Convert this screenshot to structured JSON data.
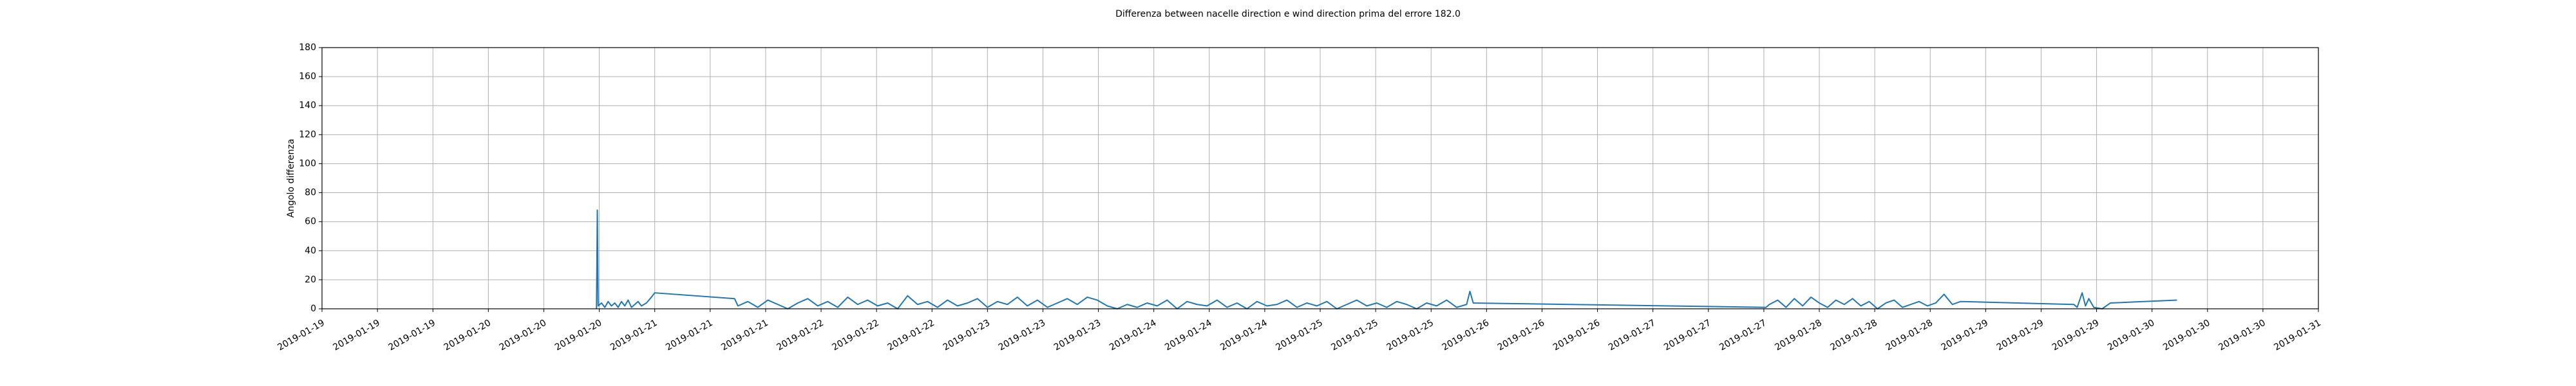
{
  "chart_data": {
    "type": "line",
    "title": "Differenza between nacelle direction e wind direction prima del errore 182.0",
    "ylabel": "Angolo differenza",
    "x": [
      20.65,
      20.655,
      20.66,
      20.68,
      20.7,
      20.72,
      20.74,
      20.76,
      20.78,
      20.8,
      20.82,
      20.84,
      20.86,
      20.88,
      20.9,
      20.92,
      20.95,
      20.98,
      21.0,
      21.48,
      21.5,
      21.56,
      21.62,
      21.68,
      21.74,
      21.8,
      21.86,
      21.92,
      21.98,
      22.04,
      22.1,
      22.16,
      22.22,
      22.28,
      22.34,
      22.4,
      22.46,
      22.52,
      22.58,
      22.64,
      22.7,
      22.76,
      22.82,
      22.88,
      22.94,
      23.0,
      23.06,
      23.12,
      23.18,
      23.24,
      23.3,
      23.36,
      23.42,
      23.48,
      23.54,
      23.6,
      23.66,
      23.72,
      23.78,
      23.84,
      23.9,
      23.96,
      24.02,
      24.08,
      24.14,
      24.2,
      24.26,
      24.32,
      24.38,
      24.44,
      24.5,
      24.56,
      24.62,
      24.68,
      24.74,
      24.8,
      24.86,
      24.92,
      24.98,
      25.04,
      25.1,
      25.16,
      25.22,
      25.28,
      25.34,
      25.4,
      25.46,
      25.52,
      25.58,
      25.64,
      25.7,
      25.76,
      25.82,
      25.88,
      25.9,
      25.92,
      27.68,
      27.7,
      27.75,
      27.8,
      27.85,
      27.9,
      27.95,
      28.0,
      28.05,
      28.1,
      28.15,
      28.2,
      28.25,
      28.3,
      28.35,
      28.4,
      28.45,
      28.5,
      28.55,
      28.6,
      28.65,
      28.7,
      28.75,
      28.8,
      28.85,
      29.53,
      29.55,
      29.58,
      29.6,
      29.62,
      29.65,
      29.7,
      29.75,
      30.15
    ],
    "series": [
      {
        "name": "Angolo differenza",
        "color": "#1f77b4",
        "values": [
          0,
          68,
          2,
          4,
          1,
          5,
          2,
          4,
          1,
          5,
          2,
          6,
          1,
          3,
          5,
          2,
          4,
          8,
          11,
          7,
          2,
          5,
          1,
          6,
          3,
          0,
          4,
          7,
          2,
          5,
          1,
          8,
          3,
          6,
          2,
          4,
          0,
          9,
          3,
          5,
          1,
          6,
          2,
          4,
          7,
          1,
          5,
          3,
          8,
          2,
          6,
          1,
          4,
          7,
          3,
          8,
          6,
          2,
          0,
          3,
          1,
          4,
          2,
          6,
          0,
          5,
          3,
          2,
          6,
          1,
          4,
          0,
          5,
          2,
          3,
          6,
          1,
          4,
          2,
          5,
          0,
          3,
          6,
          2,
          4,
          1,
          5,
          3,
          0,
          4,
          2,
          6,
          1,
          3,
          12,
          4,
          1,
          3,
          6,
          1,
          7,
          2,
          8,
          4,
          1,
          6,
          3,
          7,
          2,
          5,
          0,
          4,
          6,
          1,
          3,
          5,
          2,
          4,
          10,
          3,
          5,
          3,
          1,
          11,
          2,
          7,
          1,
          0,
          4,
          6
        ]
      }
    ],
    "xlim": [
      19,
      31
    ],
    "xticks": [
      {
        "value": 19,
        "label": "2019-01-19"
      },
      {
        "value": 19.3333,
        "label": "2019-01-19"
      },
      {
        "value": 19.6667,
        "label": "2019-01-19"
      },
      {
        "value": 20,
        "label": "2019-01-20"
      },
      {
        "value": 20.3333,
        "label": "2019-01-20"
      },
      {
        "value": 20.6667,
        "label": "2019-01-20"
      },
      {
        "value": 21,
        "label": "2019-01-21"
      },
      {
        "value": 21.3333,
        "label": "2019-01-21"
      },
      {
        "value": 21.6667,
        "label": "2019-01-21"
      },
      {
        "value": 22,
        "label": "2019-01-22"
      },
      {
        "value": 22.3333,
        "label": "2019-01-22"
      },
      {
        "value": 22.6667,
        "label": "2019-01-22"
      },
      {
        "value": 23,
        "label": "2019-01-23"
      },
      {
        "value": 23.3333,
        "label": "2019-01-23"
      },
      {
        "value": 23.6667,
        "label": "2019-01-23"
      },
      {
        "value": 24,
        "label": "2019-01-24"
      },
      {
        "value": 24.3333,
        "label": "2019-01-24"
      },
      {
        "value": 24.6667,
        "label": "2019-01-24"
      },
      {
        "value": 25,
        "label": "2019-01-25"
      },
      {
        "value": 25.3333,
        "label": "2019-01-25"
      },
      {
        "value": 25.6667,
        "label": "2019-01-25"
      },
      {
        "value": 26,
        "label": "2019-01-26"
      },
      {
        "value": 26.3333,
        "label": "2019-01-26"
      },
      {
        "value": 26.6667,
        "label": "2019-01-26"
      },
      {
        "value": 27,
        "label": "2019-01-27"
      },
      {
        "value": 27.3333,
        "label": "2019-01-27"
      },
      {
        "value": 27.6667,
        "label": "2019-01-27"
      },
      {
        "value": 28,
        "label": "2019-01-28"
      },
      {
        "value": 28.3333,
        "label": "2019-01-28"
      },
      {
        "value": 28.6667,
        "label": "2019-01-28"
      },
      {
        "value": 29,
        "label": "2019-01-29"
      },
      {
        "value": 29.3333,
        "label": "2019-01-29"
      },
      {
        "value": 29.6667,
        "label": "2019-01-29"
      },
      {
        "value": 30,
        "label": "2019-01-30"
      },
      {
        "value": 30.3333,
        "label": "2019-01-30"
      },
      {
        "value": 30.6667,
        "label": "2019-01-30"
      },
      {
        "value": 31,
        "label": "2019-01-31"
      }
    ],
    "ylim": [
      0,
      180
    ],
    "yticks": [
      0,
      20,
      40,
      60,
      80,
      100,
      120,
      140,
      160,
      180
    ],
    "grid": true
  }
}
